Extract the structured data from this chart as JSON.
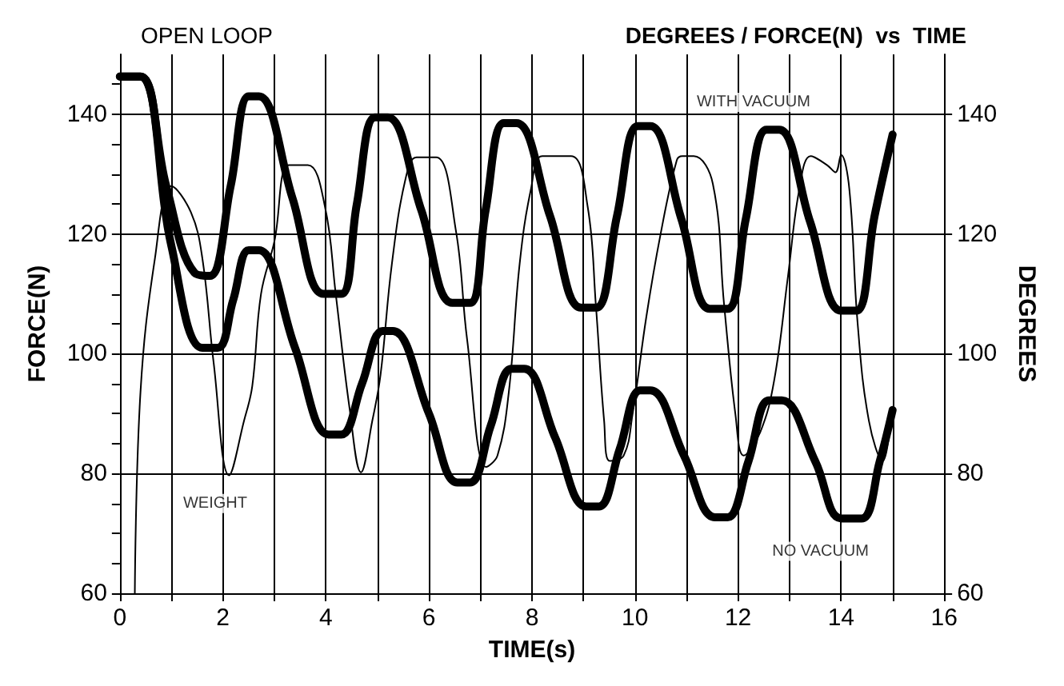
{
  "chart_data": {
    "type": "line",
    "title": "DEGREES / FORCE(N)  vs  TIME",
    "subtitle": "OPEN LOOP",
    "xlabel": "TIME(s)",
    "ylabel": "FORCE(N)",
    "y2label": "DEGREES",
    "xlim": [
      0,
      16
    ],
    "xticks": [
      0,
      {
        "value": 1,
        "label": null
      },
      2,
      {
        "value": 3,
        "label": null
      },
      4,
      {
        "value": 5,
        "label": null
      },
      6,
      {
        "value": 7,
        "label": null
      },
      8,
      {
        "value": 9,
        "label": null
      },
      10,
      {
        "value": 11,
        "label": null
      },
      12,
      {
        "value": 13,
        "label": null
      },
      14,
      {
        "value": 15,
        "label": null
      },
      16
    ],
    "ylim": [
      60,
      150
    ],
    "yticks": [
      60,
      {
        "value": 65,
        "label": null
      },
      {
        "value": 70,
        "label": null
      },
      {
        "value": 75,
        "label": null
      },
      80,
      {
        "value": 85,
        "label": null
      },
      {
        "value": 90,
        "label": null
      },
      {
        "value": 95,
        "label": null
      },
      100,
      {
        "value": 105,
        "label": null
      },
      {
        "value": 110,
        "label": null
      },
      {
        "value": 115,
        "label": null
      },
      120,
      {
        "value": 125,
        "label": null
      },
      {
        "value": 130,
        "label": null
      },
      {
        "value": 135,
        "label": null
      },
      140,
      {
        "value": 145,
        "label": null
      }
    ],
    "y2lim": [
      60,
      150
    ],
    "y2ticks": [
      60,
      80,
      100,
      120,
      140
    ],
    "grid": true,
    "legend": false,
    "marker": "none",
    "line_style": "solid",
    "series": [
      {
        "name": "WITH VACUUM",
        "color": "#000000",
        "axis": "y2",
        "x": [
          0,
          0.4,
          0.9,
          1.45,
          1.75,
          2.15,
          2.5,
          2.7,
          3.35,
          3.95,
          4.3,
          4.6,
          4.95,
          5.2,
          5.85,
          6.45,
          6.8,
          7.1,
          7.45,
          7.7,
          8.35,
          8.95,
          9.25,
          9.65,
          10.05,
          10.3,
          10.9,
          11.45,
          11.8,
          12.15,
          12.55,
          12.8,
          13.4,
          14.0,
          14.3,
          14.65,
          15.0
        ],
        "values": [
          146.3,
          146.3,
          128,
          113.5,
          113,
          128,
          143,
          143,
          126,
          110,
          110,
          125,
          139.5,
          139.5,
          124,
          108.5,
          108.5,
          124,
          138.5,
          138.5,
          123,
          107.7,
          107.7,
          123,
          138,
          138,
          122.5,
          107.5,
          107.5,
          122.5,
          137.4,
          137.4,
          122,
          107.2,
          107.2,
          123,
          136.6
        ]
      },
      {
        "name": "NO VACUUM",
        "color": "#000000",
        "axis": "y2",
        "x": [
          0,
          0.4,
          1.0,
          1.6,
          1.9,
          2.2,
          2.5,
          2.7,
          3.4,
          4.05,
          4.3,
          4.7,
          5.1,
          5.3,
          6.0,
          6.55,
          6.8,
          7.2,
          7.6,
          7.85,
          8.45,
          9.05,
          9.3,
          9.7,
          10.1,
          10.3,
          10.95,
          11.55,
          11.8,
          12.2,
          12.6,
          12.85,
          13.5,
          14.0,
          14.4,
          14.75,
          15.0
        ],
        "values": [
          146.3,
          146.3,
          118,
          101,
          101,
          109,
          117.3,
          117.3,
          101,
          86.5,
          86.5,
          95,
          103.8,
          103.8,
          90,
          78.5,
          78.5,
          88,
          97.5,
          97.5,
          86,
          74.5,
          74.5,
          84,
          93.9,
          93.9,
          83,
          72.7,
          72.7,
          82,
          92.2,
          92.2,
          82,
          72.5,
          72.5,
          82,
          90.6
        ]
      },
      {
        "name": "WEIGHT",
        "color": "#000000",
        "x": [
          0.29,
          0.4,
          0.68,
          1.0,
          1.38,
          1.6,
          1.82,
          2.12,
          2.41,
          2.57,
          2.74,
          3.0,
          3.28,
          3.65,
          3.98,
          4.19,
          4.46,
          4.68,
          4.9,
          5.06,
          5.28,
          5.55,
          5.76,
          6.14,
          6.52,
          6.74,
          7.11,
          7.33,
          7.55,
          7.76,
          7.98,
          8.2,
          8.76,
          9.08,
          9.24,
          9.4,
          9.51,
          9.78,
          9.95,
          10.22,
          10.49,
          10.81,
          10.92,
          11.14,
          11.51,
          11.73,
          11.95,
          12.11,
          12.43,
          12.7,
          12.97,
          13.19,
          13.41,
          13.73,
          13.89,
          14.0,
          14.16,
          14.32,
          14.54,
          14.81,
          14.97
        ],
        "values": [
          60,
          93.6,
          115.9,
          128,
          123.6,
          116,
          98.5,
          79.7,
          88.8,
          94.6,
          110,
          118.8,
          131.5,
          131.5,
          124.6,
          110,
          90.8,
          80.2,
          88.8,
          96.5,
          115,
          129.4,
          132.8,
          132.8,
          120.7,
          102.4,
          81.1,
          83,
          93.6,
          115,
          127.5,
          133,
          133,
          124.6,
          108.1,
          88.8,
          82.1,
          83,
          89.8,
          106.2,
          119.7,
          132.3,
          133,
          133,
          128.4,
          108.1,
          89.8,
          83,
          86.9,
          95.5,
          113,
          127.5,
          133,
          131.5,
          130.3,
          133.2,
          127.5,
          105.2,
          88.8,
          82.1,
          89.8
        ]
      }
    ]
  }
}
